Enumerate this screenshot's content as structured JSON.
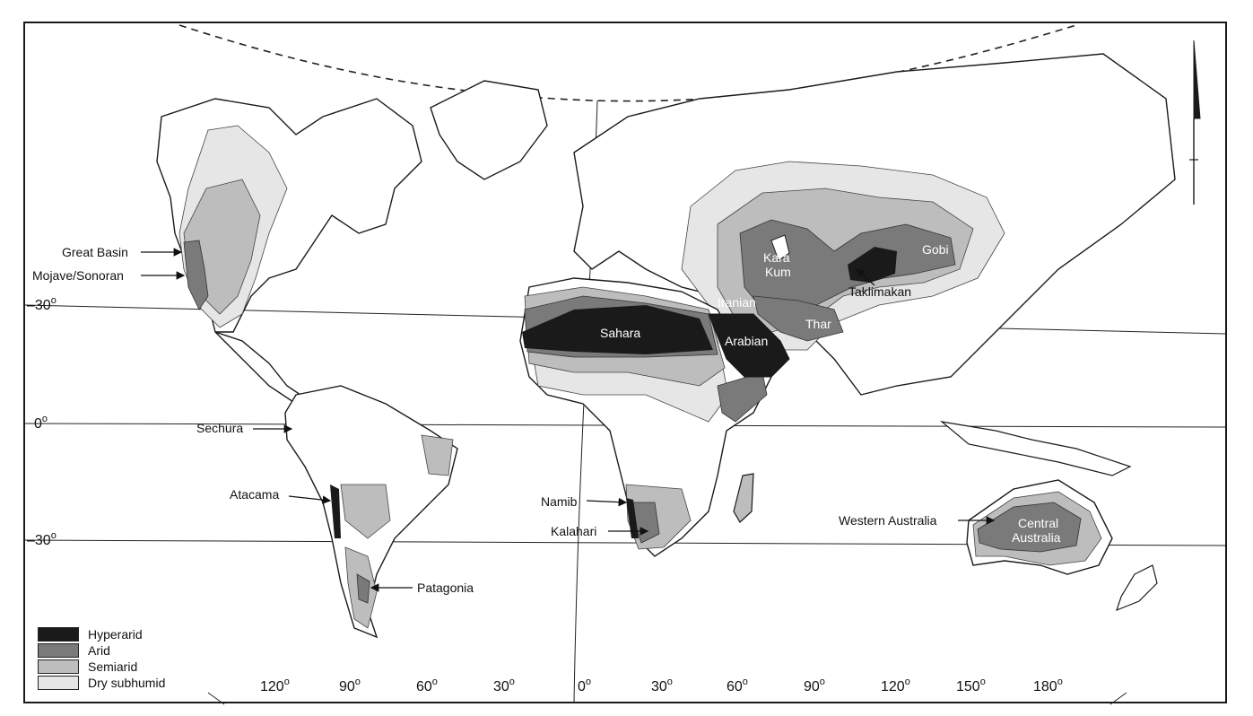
{
  "legend": [
    {
      "label": "Hyperarid",
      "color": "#1a1a1a"
    },
    {
      "label": "Arid",
      "color": "#7a7a7a"
    },
    {
      "label": "Semiarid",
      "color": "#bdbdbd"
    },
    {
      "label": "Dry subhumid",
      "color": "#e6e6e6"
    }
  ],
  "latitudes": {
    "n30": "30",
    "eq": "0",
    "s30": "30",
    "deg": "o"
  },
  "longitudes": [
    "120",
    "90",
    "60",
    "30",
    "0",
    "30",
    "60",
    "90",
    "120",
    "150",
    "180"
  ],
  "deserts": {
    "great_basin": "Great Basin",
    "mojave": "Mojave/Sonoran",
    "sechura": "Sechura",
    "atacama": "Atacama",
    "patagonia": "Patagonia",
    "namib": "Namib",
    "kalahari": "Kalahari",
    "sahara": "Sahara",
    "arabian": "Arabian",
    "iranian": "Iranian",
    "thar": "Thar",
    "kara": "Kara",
    "kum": "Kum",
    "gobi": "Gobi",
    "taklimakan": "Taklimakan",
    "western_australia": "Western Australia",
    "central": "Central",
    "australia": "Australia"
  }
}
